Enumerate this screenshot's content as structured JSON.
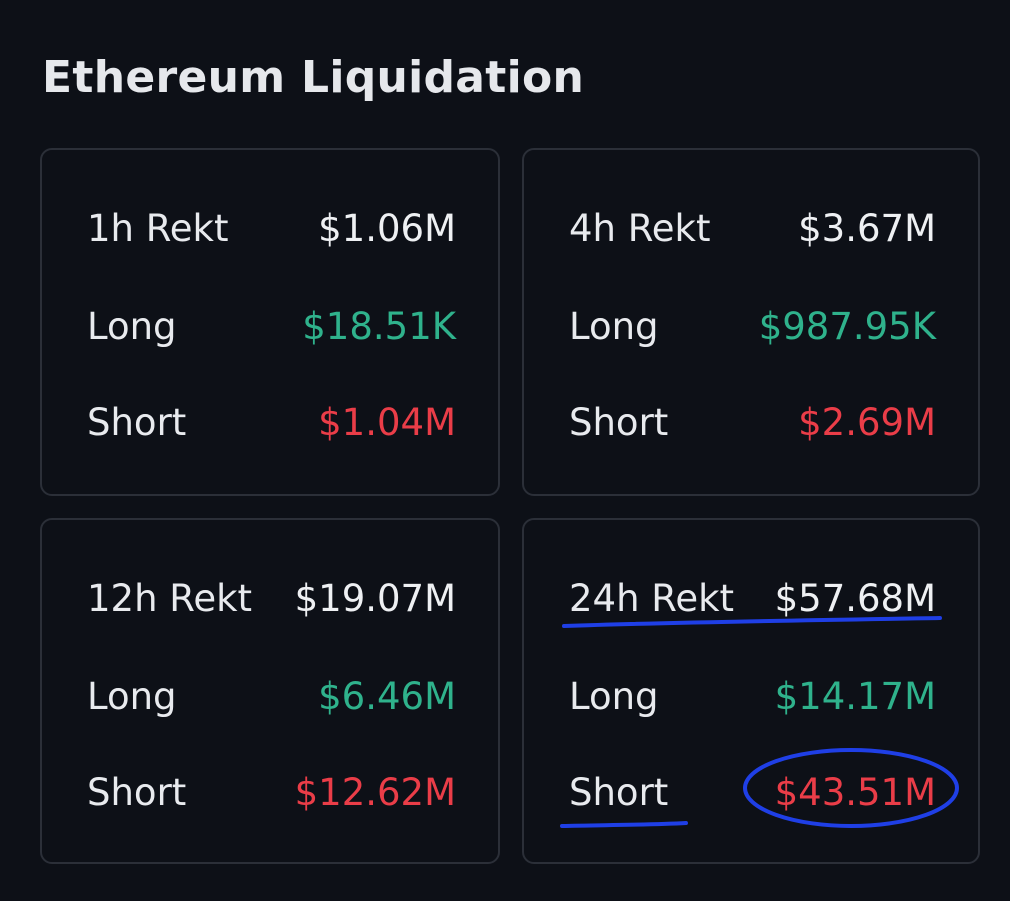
{
  "title": "Ethereum Liquidation",
  "cards": [
    {
      "period_label": "1h Rekt",
      "total": "$1.06M",
      "long_label": "Long",
      "long": "$18.51K",
      "short_label": "Short",
      "short": "$1.04M"
    },
    {
      "period_label": "4h Rekt",
      "total": "$3.67M",
      "long_label": "Long",
      "long": "$987.95K",
      "short_label": "Short",
      "short": "$2.69M"
    },
    {
      "period_label": "12h Rekt",
      "total": "$19.07M",
      "long_label": "Long",
      "long": "$6.46M",
      "short_label": "Short",
      "short": "$12.62M"
    },
    {
      "period_label": "24h Rekt",
      "total": "$57.68M",
      "long_label": "Long",
      "long": "$14.17M",
      "short_label": "Short",
      "short": "$43.51M"
    }
  ],
  "colors": {
    "background": "#0d1017",
    "card_border": "#2b2f38",
    "long": "#2fb28c",
    "short": "#ea3d48",
    "annotation": "#1f3fe6"
  }
}
